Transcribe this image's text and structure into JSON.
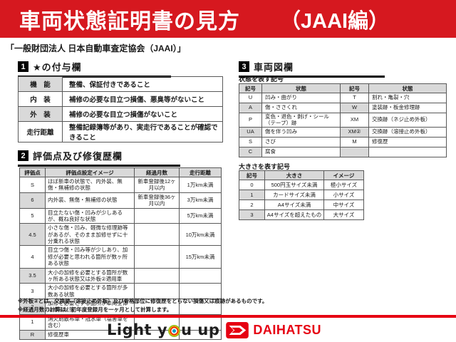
{
  "colors": {
    "banner_red": "#d6181f",
    "brand_red": "#e60012",
    "table_header_gray": "#d9d9d9"
  },
  "header": {
    "title": "車両状態証明書の見方",
    "edition": "（JAAI編）"
  },
  "subtitle": "「一般財団法人 日本自動車査定協会（JAAI）」",
  "section1": {
    "number": "1",
    "title": "★の付与欄",
    "rows": [
      [
        "機　能",
        "整備、保証付きであること"
      ],
      [
        "内　装",
        "補修の必要な目立つ損傷、悪臭等がないこと"
      ],
      [
        "外　装",
        "補修の必要な目立つ損傷がないこと"
      ],
      [
        "走行距離",
        "整備記録簿等があり、実走行であることが確認できること"
      ]
    ]
  },
  "section2": {
    "number": "2",
    "title": "評価点及び修復歴欄",
    "headers": [
      "評価点",
      "評価点設定イメージ",
      "経過月数",
      "走行距離"
    ],
    "rows": [
      [
        "S",
        "ほぼ新車の状態で、内外装、無傷・無補修の状態",
        "新車登録後12ヶ月以内",
        "1万km未満"
      ],
      [
        "6",
        "内外装、無傷・無補修の状態",
        "新車登録後36ヶ月以内",
        "3万km未満"
      ],
      [
        "5",
        "目立たない傷・凹みが少しあるが、概ね良好な状態",
        "",
        "5万km未満"
      ],
      [
        "4.5",
        "小さな傷・凹み、軽微な修理跡等があるが、そのまま加修せずに十分乗れる状態",
        "",
        "10万km未満"
      ],
      [
        "4",
        "目立つ傷・凹み等が少しあり、加修が必要と思われる箇所が数ヶ所ある状態",
        "",
        "15万km未満"
      ],
      [
        "3.5",
        "大小の加修を必要とする箇所が数ヶ所ある状態又は外板②適用車",
        "",
        ""
      ],
      [
        "3",
        "大小の加修を必要とする箇所が多数ある状態",
        "",
        ""
      ],
      [
        "2",
        "加修を必要とする箇所が車両全体にある状態",
        "",
        ""
      ],
      [
        "1",
        "消火剤散布車・冠水車（塩害車を含む）",
        "",
        ""
      ],
      [
        "R",
        "修復歴車",
        "",
        ""
      ]
    ]
  },
  "section3": {
    "number": "3",
    "title": "車両図欄",
    "condition_table": {
      "label": "状態を表す記号",
      "headers": [
        "記号",
        "状態",
        "記号",
        "状態"
      ],
      "rows": [
        [
          "U",
          "凹み・曲がり",
          "T",
          "割れ・亀裂・穴"
        ],
        [
          "A",
          "傷・ささくれ",
          "W",
          "塗装跡・板金修理跡"
        ],
        [
          "P",
          "変色・退色・剥げ・シール（テープ）跡",
          "XM",
          "交換跡（ネジ止め外板）"
        ],
        [
          "UA",
          "傷を伴う凹み",
          "XM②",
          "交換跡（溶接止め外板）"
        ],
        [
          "S",
          "さび",
          "M",
          "修復歴"
        ],
        [
          "C",
          "腐食",
          "",
          ""
        ]
      ]
    },
    "size_table": {
      "label": "大きさを表す記号",
      "headers": [
        "記号",
        "大きさ",
        "イメージ"
      ],
      "rows": [
        [
          "0",
          "500円玉サイズ未満",
          "極小サイズ"
        ],
        [
          "1",
          "カードサイズ未満",
          "小サイズ"
        ],
        [
          "2",
          "A4サイズ未満",
          "中サイズ"
        ],
        [
          "3",
          "A4サイズを超えたもの",
          "大サイズ"
        ]
      ]
    }
  },
  "notes": [
    "※外板②とは、交換跡（溶接止め外板）及び骨格部位に修復歴をとらない損傷又は痕跡があるものです。",
    "※経過月数の計算は、初年度登録月を一ヶ月として計算します。"
  ],
  "footer": {
    "slogan_left": "Light y",
    "slogan_right": "u up",
    "brand": "DAIHATSU"
  }
}
